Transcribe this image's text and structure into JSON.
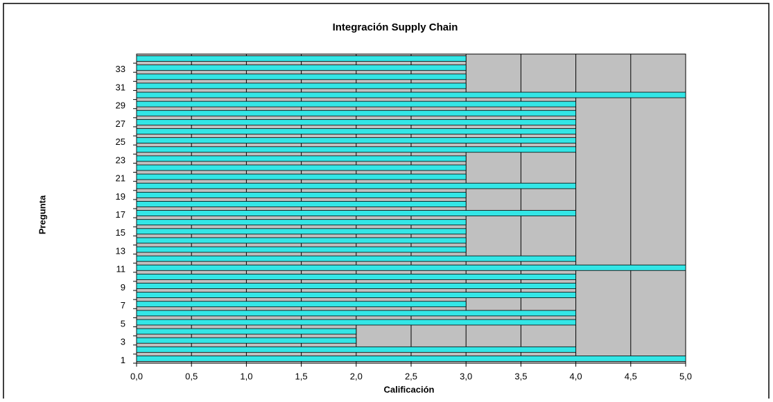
{
  "chart_data": {
    "type": "hbar",
    "title": "Integración Supply Chain",
    "x_label": "Calificación",
    "y_label": "Pregunta",
    "categories": [
      "1",
      null,
      "3",
      null,
      "5",
      null,
      "7",
      null,
      "9",
      null,
      "11",
      null,
      "13",
      null,
      "15",
      null,
      "17",
      null,
      "19",
      null,
      "21",
      null,
      "23",
      null,
      "25",
      null,
      "27",
      null,
      "29",
      null,
      "31",
      null,
      "33",
      null
    ],
    "values": [
      5,
      4,
      2,
      2,
      4,
      4,
      3,
      4,
      4,
      4,
      5,
      4,
      3,
      3,
      3,
      3,
      4,
      3,
      3,
      4,
      3,
      3,
      3,
      4,
      4,
      4,
      4,
      4,
      4,
      5,
      3,
      3,
      3,
      3
    ],
    "color": "#33e6e6",
    "xlim": [
      0,
      5
    ],
    "xticks": [
      {
        "value": 0,
        "label": "0,0"
      },
      {
        "value": 0.5,
        "label": "0,5"
      },
      {
        "value": 1,
        "label": "1,0"
      },
      {
        "value": 1.5,
        "label": "1,5"
      },
      {
        "value": 2,
        "label": "2,0"
      },
      {
        "value": 2.5,
        "label": "2,5"
      },
      {
        "value": 3,
        "label": "3,0"
      },
      {
        "value": 3.5,
        "label": "3,5"
      },
      {
        "value": 4,
        "label": "4,0"
      },
      {
        "value": 4.5,
        "label": "4,5"
      },
      {
        "value": 5,
        "label": "5,0"
      }
    ],
    "grid": true
  }
}
